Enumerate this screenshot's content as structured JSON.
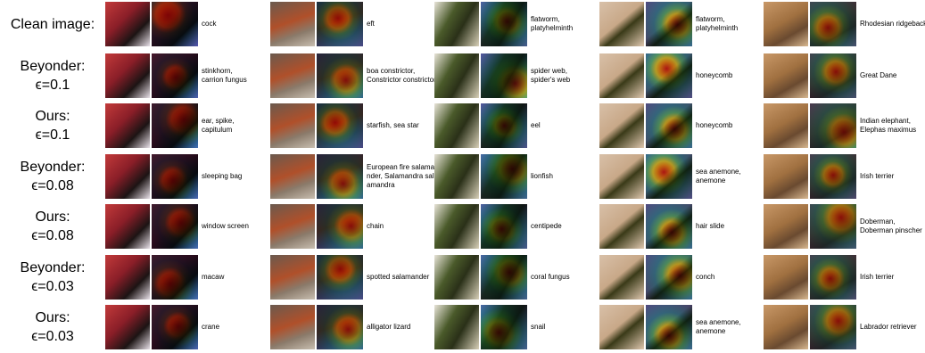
{
  "rows": [
    {
      "label": [
        "Clean image:"
      ],
      "cells": [
        {
          "lines": [
            "cock"
          ]
        },
        {
          "lines": [
            "eft"
          ]
        },
        {
          "lines": [
            "flatworm,",
            "platyhelminth"
          ]
        },
        {
          "lines": [
            "flatworm,",
            "platyhelminth"
          ]
        },
        {
          "lines": [
            "Rhodesian ridgeback"
          ]
        }
      ]
    },
    {
      "label": [
        "Beyonder:",
        "ϵ=0.1"
      ],
      "cells": [
        {
          "lines": [
            "stinkhorn,",
            "carrion fungus"
          ]
        },
        {
          "lines": [
            "boa constrictor,",
            "Constrictor constrictor"
          ]
        },
        {
          "lines": [
            "spider web,",
            "spider's web"
          ]
        },
        {
          "lines": [
            "honeycomb"
          ]
        },
        {
          "lines": [
            "Great Dane"
          ]
        }
      ]
    },
    {
      "label": [
        "Ours:",
        "ϵ=0.1"
      ],
      "cells": [
        {
          "lines": [
            "ear, spike,",
            "capitulum"
          ]
        },
        {
          "lines": [
            "starfish, sea star"
          ]
        },
        {
          "lines": [
            "eel"
          ]
        },
        {
          "lines": [
            "honeycomb"
          ]
        },
        {
          "lines": [
            "Indian elephant,",
            "Elephas maximus"
          ]
        }
      ]
    },
    {
      "label": [
        "Beyonder:",
        "ϵ=0.08"
      ],
      "cells": [
        {
          "lines": [
            "sleeping bag"
          ]
        },
        {
          "lines": [
            "European fire salama-",
            "nder, Salamandra sal-",
            "amandra"
          ]
        },
        {
          "lines": [
            "lionfish"
          ]
        },
        {
          "lines": [
            "sea anemone,",
            "anemone"
          ]
        },
        {
          "lines": [
            "Irish terrier"
          ]
        }
      ]
    },
    {
      "label": [
        "Ours:",
        "ϵ=0.08"
      ],
      "cells": [
        {
          "lines": [
            "window screen"
          ]
        },
        {
          "lines": [
            "chain"
          ]
        },
        {
          "lines": [
            "centipede"
          ]
        },
        {
          "lines": [
            "hair slide"
          ]
        },
        {
          "lines": [
            "Doberman,",
            "Doberman pinscher"
          ]
        }
      ]
    },
    {
      "label": [
        "Beyonder:",
        "ϵ=0.03"
      ],
      "cells": [
        {
          "lines": [
            "macaw"
          ]
        },
        {
          "lines": [
            "spotted salamander"
          ]
        },
        {
          "lines": [
            "coral fungus"
          ]
        },
        {
          "lines": [
            "conch"
          ]
        },
        {
          "lines": [
            "Irish terrier"
          ]
        }
      ]
    },
    {
      "label": [
        "Ours:",
        "ϵ=0.03"
      ],
      "cells": [
        {
          "lines": [
            "crane"
          ]
        },
        {
          "lines": [
            "alligator lizard"
          ]
        },
        {
          "lines": [
            "snail"
          ]
        },
        {
          "lines": [
            "sea anemone,",
            "anemone"
          ]
        },
        {
          "lines": [
            "Labrador retriever"
          ]
        }
      ]
    }
  ]
}
